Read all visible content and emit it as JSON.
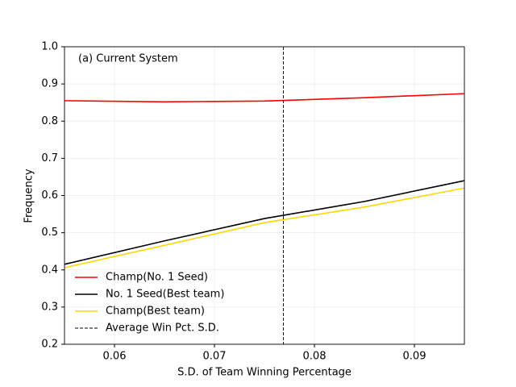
{
  "chart_data": {
    "type": "line",
    "annotation": "(a) Current System",
    "xlabel": "S.D. of Team Winning Percentage",
    "ylabel": "Frequency",
    "x": [
      0.055,
      0.065,
      0.075,
      0.085,
      0.095
    ],
    "series": [
      {
        "name": "Champ(No. 1 Seed)",
        "color": "#ff0000",
        "values": [
          0.855,
          0.852,
          0.854,
          0.863,
          0.874
        ]
      },
      {
        "name": "No. 1 Seed(Best team)",
        "color": "#000000",
        "values": [
          0.415,
          0.478,
          0.538,
          0.584,
          0.64
        ]
      },
      {
        "name": "Champ(Best team)",
        "color": "#ffd700",
        "values": [
          0.406,
          0.466,
          0.527,
          0.569,
          0.62
        ]
      }
    ],
    "vlines": [
      {
        "name": "Average Win Pct. S.D.",
        "x": 0.0769,
        "color": "#000000",
        "dashed": true
      }
    ],
    "xlim": [
      0.055,
      0.095
    ],
    "ylim": [
      0.2,
      1.0
    ],
    "xticks": [
      0.06,
      0.07,
      0.08,
      0.09
    ],
    "yticks": [
      0.2,
      0.3,
      0.4,
      0.5,
      0.6,
      0.7,
      0.8,
      0.9,
      {
        "value": 1.0,
        "label": "1.0"
      }
    ],
    "grid": true,
    "legend": "lower left"
  }
}
